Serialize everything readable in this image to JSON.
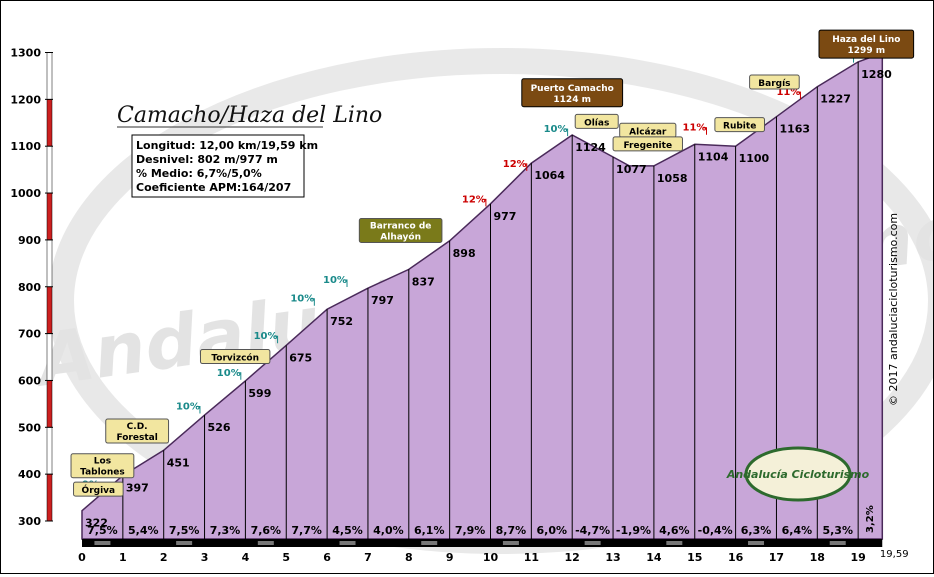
{
  "chart_data": {
    "type": "area",
    "title": "Camacho/Haza del Lino",
    "summary": {
      "longitud": "Longitud: 12,00 km/19,59 km",
      "desnivel": "Desnivel: 802 m/977 m",
      "medio": "% Medio: 6,7%/5,0%",
      "coeficiente": "Coeficiente APM:164/207"
    },
    "xlabel": "km",
    "ylabel": "m",
    "xlim": [
      0,
      19.59
    ],
    "ylim": [
      300,
      1300
    ],
    "x_ticks": [
      "0",
      "1",
      "2",
      "3",
      "4",
      "5",
      "6",
      "7",
      "8",
      "9",
      "10",
      "11",
      "12",
      "13",
      "14",
      "15",
      "16",
      "17",
      "18",
      "19"
    ],
    "x_end_label": "19,59",
    "y_ticks": [
      "300",
      "400",
      "500",
      "600",
      "700",
      "800",
      "900",
      "1000",
      "1100",
      "1200",
      "1300"
    ],
    "profile": [
      {
        "km": 0,
        "alt": 322
      },
      {
        "km": 1,
        "alt": 397
      },
      {
        "km": 2,
        "alt": 451
      },
      {
        "km": 3,
        "alt": 526
      },
      {
        "km": 4,
        "alt": 599
      },
      {
        "km": 5,
        "alt": 675
      },
      {
        "km": 6,
        "alt": 752
      },
      {
        "km": 7,
        "alt": 797
      },
      {
        "km": 8,
        "alt": 837
      },
      {
        "km": 9,
        "alt": 898
      },
      {
        "km": 10,
        "alt": 977
      },
      {
        "km": 11,
        "alt": 1064
      },
      {
        "km": 12,
        "alt": 1124
      },
      {
        "km": 13,
        "alt": 1077
      },
      {
        "km": 13.4,
        "alt": 1058
      },
      {
        "km": 14,
        "alt": 1058
      },
      {
        "km": 15,
        "alt": 1104
      },
      {
        "km": 16,
        "alt": 1100
      },
      {
        "km": 17,
        "alt": 1163
      },
      {
        "km": 18,
        "alt": 1227
      },
      {
        "km": 19,
        "alt": 1280
      },
      {
        "km": 19.59,
        "alt": 1299
      }
    ],
    "alt_labels": [
      {
        "km": 0,
        "alt": 322,
        "text": "322"
      },
      {
        "km": 1,
        "alt": 397,
        "text": "397"
      },
      {
        "km": 2,
        "alt": 451,
        "text": "451"
      },
      {
        "km": 3,
        "alt": 526,
        "text": "526"
      },
      {
        "km": 4,
        "alt": 599,
        "text": "599"
      },
      {
        "km": 5,
        "alt": 675,
        "text": "675"
      },
      {
        "km": 6,
        "alt": 752,
        "text": "752"
      },
      {
        "km": 7,
        "alt": 797,
        "text": "797"
      },
      {
        "km": 8,
        "alt": 837,
        "text": "837"
      },
      {
        "km": 9,
        "alt": 898,
        "text": "898"
      },
      {
        "km": 10,
        "alt": 977,
        "text": "977"
      },
      {
        "km": 11,
        "alt": 1064,
        "text": "1064"
      },
      {
        "km": 12,
        "alt": 1124,
        "text": "1124"
      },
      {
        "km": 13,
        "alt": 1077,
        "text": "1077"
      },
      {
        "km": 14,
        "alt": 1058,
        "text": "1058"
      },
      {
        "km": 15,
        "alt": 1104,
        "text": "1104"
      },
      {
        "km": 16,
        "alt": 1100,
        "text": "1100"
      },
      {
        "km": 17,
        "alt": 1163,
        "text": "1163"
      },
      {
        "km": 18,
        "alt": 1227,
        "text": "1227"
      },
      {
        "km": 19,
        "alt": 1280,
        "text": "1280"
      }
    ],
    "segment_gradients": [
      "7,5%",
      "5,4%",
      "7,5%",
      "7,3%",
      "7,6%",
      "7,7%",
      "4,5%",
      "4,0%",
      "6,1%",
      "7,9%",
      "8,7%",
      "6,0%",
      "-4,7%",
      "-1,9%",
      "4,6%",
      "-0,4%",
      "6,3%",
      "6,4%",
      "5,3%",
      "3,2%"
    ],
    "max_gradients": [
      {
        "km": 0.0,
        "alt": 372,
        "text": "9%",
        "color": "#1a8a8a"
      },
      {
        "km": 2.3,
        "alt": 538,
        "text": "10%",
        "color": "#1a8a8a"
      },
      {
        "km": 3.3,
        "alt": 610,
        "text": "10%",
        "color": "#1a8a8a"
      },
      {
        "km": 4.2,
        "alt": 688,
        "text": "10%",
        "color": "#1a8a8a"
      },
      {
        "km": 5.1,
        "alt": 768,
        "text": "10%",
        "color": "#1a8a8a"
      },
      {
        "km": 5.9,
        "alt": 808,
        "text": "10%",
        "color": "#1a8a8a"
      },
      {
        "km": 9.3,
        "alt": 980,
        "text": "12%",
        "color": "#cc0000"
      },
      {
        "km": 10.3,
        "alt": 1056,
        "text": "12%",
        "color": "#cc0000"
      },
      {
        "km": 11.3,
        "alt": 1130,
        "text": "10%",
        "color": "#1a8a8a"
      },
      {
        "km": 14.7,
        "alt": 1133,
        "text": "11%",
        "color": "#cc0000"
      },
      {
        "km": 17.0,
        "alt": 1209,
        "text": "11%",
        "color": "#cc0000"
      },
      {
        "km": 18.3,
        "alt": 1287,
        "text": "10%",
        "color": "#1a8a8a"
      }
    ],
    "places": [
      {
        "name": "Órgiva",
        "km": 0.4,
        "alt": 368,
        "style": "yellow"
      },
      {
        "name": "Los Tablones",
        "km": 0.5,
        "alt": 418,
        "style": "yellow"
      },
      {
        "name": "C.D. Forestal",
        "km": 1.35,
        "alt": 492,
        "style": "yellow"
      },
      {
        "name": "Torvizcón",
        "km": 3.75,
        "alt": 651,
        "style": "yellow"
      },
      {
        "name": "Barranco de Alhayón",
        "km": 7.8,
        "alt": 920,
        "style": "olive"
      },
      {
        "name": "Olías",
        "km": 12.6,
        "alt": 1153,
        "style": "yellow"
      },
      {
        "name": "Alcázar",
        "km": 13.85,
        "alt": 1134,
        "style": "yellow"
      },
      {
        "name": "Fregenite",
        "km": 13.85,
        "alt": 1105,
        "style": "yellow"
      },
      {
        "name": "Rubite",
        "km": 16.1,
        "alt": 1146,
        "style": "yellow"
      },
      {
        "name": "Bargís",
        "km": 16.95,
        "alt": 1237,
        "style": "yellow"
      }
    ],
    "peaks": [
      {
        "name": "Puerto Camacho",
        "alt": "1124 m",
        "km": 12.0,
        "alt_m": 1214
      },
      {
        "name": "Haza del Lino",
        "alt": "1299 m",
        "km": 19.2,
        "alt_m": 1318
      }
    ],
    "watermark": "Andalucía Cicloturismo",
    "logo": "Andalucía Cicloturismo",
    "copyright": "© 2017 andaluciacicloturismo.com",
    "colors": {
      "profile_fill": "#c8a6d8",
      "profile_line": "#4a2a5a",
      "red": "#cc1f1f",
      "teal": "#1a8a8a"
    }
  }
}
